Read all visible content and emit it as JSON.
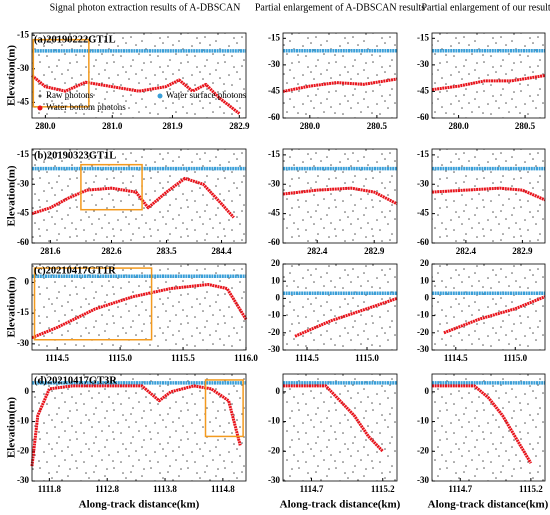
{
  "column_titles": [
    "Signal photon extraction results of A-DBSCAN",
    "Partial enlargement of A-DBSCAN results",
    "Partial enlargement of our results"
  ],
  "y_label": "Elevation(m)",
  "x_label": "Along-track distance(km)",
  "legend": {
    "raw": "Raw photons",
    "surface": "Water surface photons",
    "bottom": "Water bottom photons",
    "colors": {
      "raw": "#555555",
      "surface": "#3a9fd8",
      "bottom": "#e8141c"
    }
  },
  "highlight_color": "#f39a1e",
  "panels": [
    {
      "label": "(a)20190222GT1L",
      "xlim": [
        279.8,
        283.0
      ],
      "xticks": [
        {
          "value": 280,
          "label": "280.0"
        },
        {
          "value": 281,
          "label": "281.0"
        },
        281.9,
        282.9
      ],
      "ylim": [
        -52,
        -14
      ],
      "yticks": [
        -15,
        -30,
        -45
      ],
      "surface": {
        "x": [
          279.8,
          283.0
        ],
        "y": [
          -22,
          -22
        ]
      },
      "bottom": {
        "x": [
          279.8,
          280.0,
          280.3,
          280.6,
          281.0,
          281.4,
          281.8,
          282.0,
          282.2,
          282.4,
          282.6,
          282.9
        ],
        "y": [
          -33,
          -38,
          -40,
          -36,
          -38,
          -40,
          -38,
          -35,
          -40,
          -37,
          -43,
          -50
        ]
      },
      "highlight": {
        "x": [
          279.82,
          280.65
        ],
        "y": [
          -17,
          -47
        ]
      }
    },
    {
      "xlim": [
        279.8,
        280.65
      ],
      "xticks": [
        {
          "value": 280,
          "label": "280.0"
        },
        280.5
      ],
      "ylim": [
        -60,
        -12
      ],
      "yticks": [
        -15,
        -30,
        -45,
        -60
      ],
      "surface": {
        "x": [
          279.8,
          280.65
        ],
        "y": [
          -22,
          -22
        ]
      },
      "bottom": {
        "x": [
          279.8,
          280.0,
          280.2,
          280.4,
          280.65
        ],
        "y": [
          -45,
          -42,
          -40,
          -41,
          -38
        ]
      }
    },
    {
      "xlim": [
        279.8,
        280.65
      ],
      "xticks": [
        {
          "value": 280,
          "label": "280.0"
        },
        280.5
      ],
      "ylim": [
        -60,
        -12
      ],
      "yticks": [
        -15,
        -30,
        -45,
        -60
      ],
      "surface": {
        "x": [
          279.8,
          280.65
        ],
        "y": [
          -22,
          -22
        ]
      },
      "bottom": {
        "x": [
          279.8,
          280.0,
          280.2,
          280.4,
          280.65
        ],
        "y": [
          -44,
          -42,
          -39,
          -39,
          -36
        ]
      }
    },
    {
      "label": "(b)20190323GT1L",
      "xlim": [
        281.3,
        284.8
      ],
      "xticks": [
        281.6,
        282.6,
        283.5,
        284.4
      ],
      "ylim": [
        -60,
        -12
      ],
      "yticks": [
        -15,
        -30,
        -45,
        -60
      ],
      "surface": {
        "x": [
          281.3,
          284.8
        ],
        "y": [
          -22,
          -22
        ]
      },
      "bottom": {
        "x": [
          281.3,
          281.6,
          281.9,
          282.2,
          282.6,
          283.0,
          283.2,
          283.5,
          283.8,
          284.1,
          284.4,
          284.6
        ],
        "y": [
          -45,
          -42,
          -37,
          -33,
          -32,
          -34,
          -42,
          -34,
          -27,
          -30,
          -40,
          -47
        ]
      },
      "highlight": {
        "x": [
          282.1,
          283.1
        ],
        "y": [
          -20,
          -43
        ]
      }
    },
    {
      "xlim": [
        282.1,
        283.1
      ],
      "xticks": [
        282.4,
        282.9
      ],
      "ylim": [
        -60,
        -12
      ],
      "yticks": [
        -15,
        -30,
        -45,
        -60
      ],
      "surface": {
        "x": [
          282.1,
          283.1
        ],
        "y": [
          -22,
          -22
        ]
      },
      "bottom": {
        "x": [
          282.1,
          282.4,
          282.7,
          282.9,
          283.1
        ],
        "y": [
          -35,
          -33,
          -32,
          -34,
          -40
        ]
      }
    },
    {
      "xlim": [
        282.1,
        283.1
      ],
      "xticks": [
        282.4,
        282.9
      ],
      "ylim": [
        -60,
        -12
      ],
      "yticks": [
        -15,
        -30,
        -45,
        -60
      ],
      "surface": {
        "x": [
          282.1,
          283.1
        ],
        "y": [
          -22,
          -22
        ]
      },
      "bottom": {
        "x": [
          282.1,
          282.4,
          282.7,
          282.9,
          283.1
        ],
        "y": [
          -34,
          -33,
          -32,
          -33,
          -38
        ]
      }
    },
    {
      "label": "(c)20210417GT1R",
      "xlim": [
        1114.3,
        1116.0
      ],
      "xticks": [
        1114.5,
        {
          "value": 1115,
          "label": "1115.0"
        },
        1115.5,
        {
          "value": 1116,
          "label": "1116.0"
        }
      ],
      "ylim": [
        -33,
        9
      ],
      "yticks": [
        0,
        -15,
        -30
      ],
      "surface": {
        "x": [
          1114.3,
          1116.0
        ],
        "y": [
          3,
          3
        ]
      },
      "bottom": {
        "x": [
          1114.3,
          1114.5,
          1114.8,
          1115.1,
          1115.4,
          1115.7,
          1115.85,
          1116.0
        ],
        "y": [
          -27,
          -22,
          -13,
          -7,
          -3,
          -1,
          -3,
          -18
        ]
      },
      "highlight": {
        "x": [
          1114.32,
          1115.25
        ],
        "y": [
          7,
          -28
        ]
      }
    },
    {
      "xlim": [
        1114.3,
        1115.25
      ],
      "xticks": [
        1114.5,
        {
          "value": 1115,
          "label": "1115.0"
        }
      ],
      "ylim": [
        -30,
        20
      ],
      "yticks": [
        20,
        10,
        0,
        -10,
        -20,
        -30
      ],
      "surface": {
        "x": [
          1114.3,
          1115.25
        ],
        "y": [
          3,
          3
        ]
      },
      "bottom": {
        "x": [
          1114.4,
          1114.7,
          1115.0,
          1115.25
        ],
        "y": [
          -22,
          -13,
          -6,
          0
        ]
      }
    },
    {
      "xlim": [
        1114.3,
        1115.25
      ],
      "xticks": [
        1114.5,
        {
          "value": 1115,
          "label": "1115.0"
        }
      ],
      "ylim": [
        -30,
        20
      ],
      "yticks": [
        20,
        10,
        0,
        -10,
        -20,
        -30
      ],
      "surface": {
        "x": [
          1114.3,
          1115.25
        ],
        "y": [
          3,
          3
        ]
      },
      "bottom": {
        "x": [
          1114.4,
          1114.7,
          1115.0,
          1115.25
        ],
        "y": [
          -20,
          -12,
          -6,
          1
        ]
      }
    },
    {
      "label": "(d)20210417GT3R",
      "xlim": [
        1111.5,
        1115.2
      ],
      "xticks": [
        1111.8,
        1112.8,
        1113.8,
        1114.8
      ],
      "ylim": [
        -30,
        6
      ],
      "yticks": [
        0,
        -10,
        -20,
        -30
      ],
      "surface": {
        "x": [
          1111.5,
          1115.2
        ],
        "y": [
          3,
          3
        ]
      },
      "bottom": {
        "x": [
          1111.5,
          1111.6,
          1111.8,
          1112.2,
          1112.8,
          1113.4,
          1113.7,
          1113.9,
          1114.3,
          1114.6,
          1114.9,
          1115.1
        ],
        "y": [
          -25,
          -8,
          1,
          2,
          2,
          2,
          -3,
          0,
          2,
          1,
          -3,
          -18
        ]
      },
      "highlight": {
        "x": [
          1114.5,
          1115.15
        ],
        "y": [
          4,
          -15
        ]
      }
    },
    {
      "xlim": [
        1114.5,
        1115.3
      ],
      "xticks": [
        1114.7,
        1115.2
      ],
      "ylim": [
        -30,
        6
      ],
      "yticks": [
        0,
        -10,
        -20,
        -30
      ],
      "surface": {
        "x": [
          1114.5,
          1115.3
        ],
        "y": [
          3,
          3
        ]
      },
      "bottom": {
        "x": [
          1114.5,
          1114.8,
          1114.9,
          1115.0,
          1115.1,
          1115.2
        ],
        "y": [
          2,
          2,
          -3,
          -8,
          -15,
          -20
        ]
      }
    },
    {
      "xlim": [
        1114.5,
        1115.3
      ],
      "xticks": [
        1114.7,
        1115.2
      ],
      "ylim": [
        -30,
        6
      ],
      "yticks": [
        0,
        -10,
        -20,
        -30
      ],
      "surface": {
        "x": [
          1114.5,
          1115.3
        ],
        "y": [
          3,
          3
        ]
      },
      "bottom": {
        "x": [
          1114.5,
          1114.8,
          1114.9,
          1115.0,
          1115.1,
          1115.2
        ],
        "y": [
          2,
          2,
          -2,
          -8,
          -16,
          -24
        ]
      }
    }
  ]
}
